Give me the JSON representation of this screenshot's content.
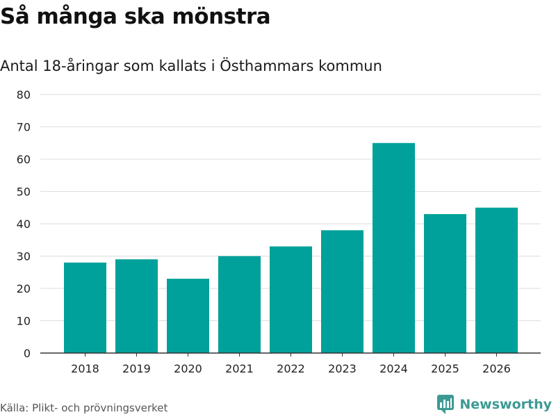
{
  "header": {
    "title": "Så många ska mönstra",
    "subtitle": "Antal 18-åringar som kallats i Östhammars kommun"
  },
  "footer": {
    "source": "Källa: Plikt- och prövningsverket",
    "brand": "Newsworthy",
    "brand_icon": "newsworthy-logo-icon"
  },
  "colors": {
    "bar": "#00a19a",
    "grid": "#dddddd",
    "axis": "#333333",
    "brand": "#3d9a93"
  },
  "chart_data": {
    "type": "bar",
    "title": "Så många ska mönstra",
    "subtitle": "Antal 18-åringar som kallats i Östhammars kommun",
    "xlabel": "",
    "ylabel": "",
    "categories": [
      "2018",
      "2019",
      "2020",
      "2021",
      "2022",
      "2023",
      "2024",
      "2025",
      "2026"
    ],
    "values": [
      28,
      29,
      23,
      30,
      33,
      38,
      65,
      43,
      45
    ],
    "ylim": [
      0,
      80
    ],
    "yticks": [
      0,
      10,
      20,
      30,
      40,
      50,
      60,
      70,
      80
    ],
    "grid": true
  }
}
